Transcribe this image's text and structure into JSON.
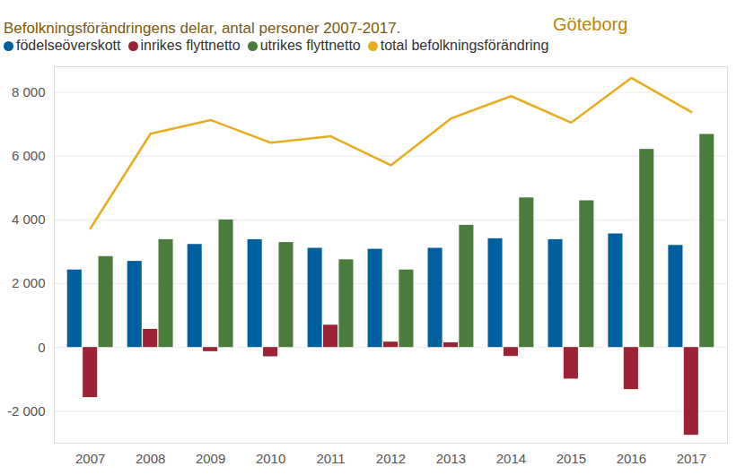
{
  "chart_data": {
    "type": "bar",
    "title": "Befolkningsförändringens delar, antal personer 2007-2017.",
    "subtitle": "Göteborg",
    "categories": [
      "2007",
      "2008",
      "2009",
      "2010",
      "2011",
      "2012",
      "2013",
      "2014",
      "2015",
      "2016",
      "2017"
    ],
    "series": [
      {
        "name": "födelseöverskott",
        "color": "#005f9e",
        "type": "bar",
        "values": [
          2430,
          2700,
          3230,
          3380,
          3110,
          3080,
          3110,
          3410,
          3380,
          3560,
          3200
        ]
      },
      {
        "name": "inrikes flyttnetto",
        "color": "#9b2335",
        "type": "bar",
        "values": [
          -1570,
          570,
          -130,
          -290,
          700,
          170,
          150,
          -280,
          -990,
          -1320,
          -2750
        ]
      },
      {
        "name": "utrikes flyttnetto",
        "color": "#4a7c3b",
        "type": "bar",
        "values": [
          2850,
          3380,
          4000,
          3290,
          2750,
          2430,
          3830,
          4690,
          4600,
          6210,
          6680
        ]
      },
      {
        "name": "total befolkningsförändring",
        "color": "#e8ad1f",
        "type": "line",
        "values": [
          3730,
          6700,
          7130,
          6420,
          6620,
          5710,
          7180,
          7880,
          7050,
          8450,
          7380
        ]
      }
    ],
    "ylim": [
      -3000,
      8800
    ],
    "yticks": [
      {
        "value": -2000,
        "label": "-2 000"
      },
      0,
      {
        "value": 2000,
        "label": "2 000"
      },
      {
        "value": 4000,
        "label": "4 000"
      },
      {
        "value": 6000,
        "label": "6 000"
      },
      {
        "value": 8000,
        "label": "8 000"
      }
    ],
    "grid": true,
    "legend": "top"
  }
}
